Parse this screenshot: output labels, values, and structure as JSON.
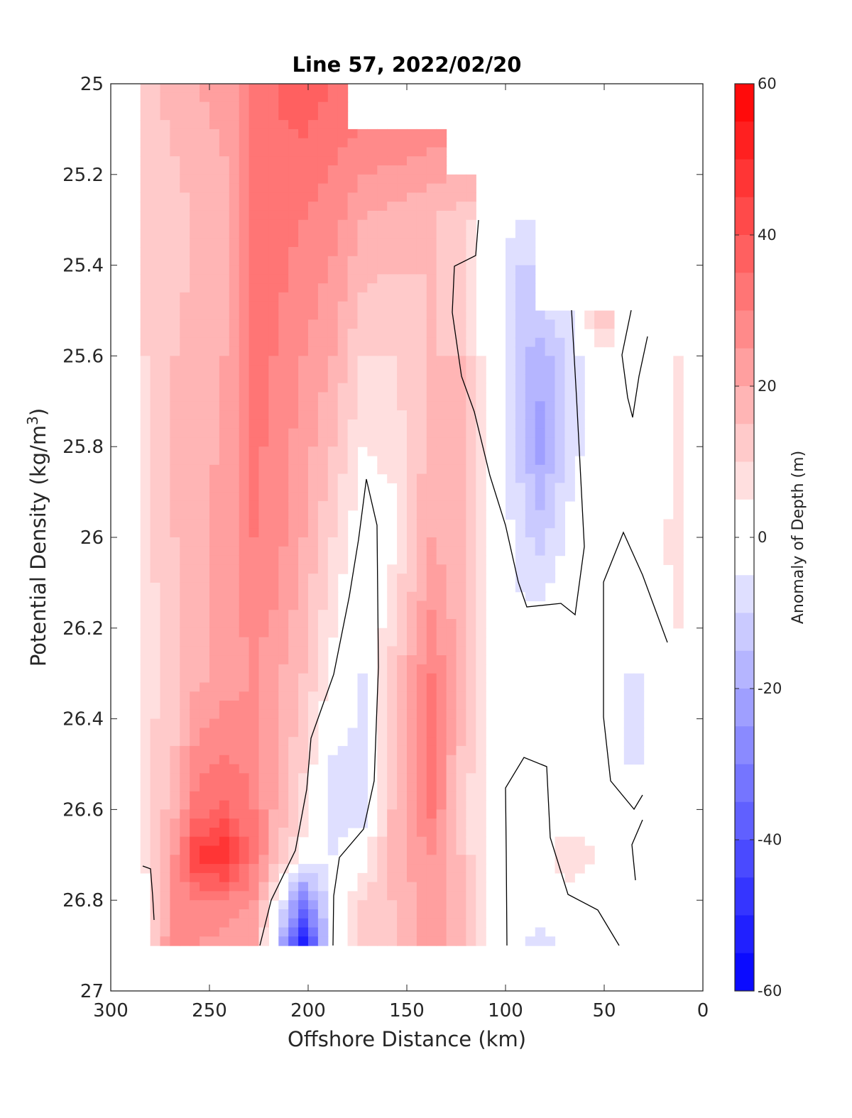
{
  "chart_data": {
    "type": "heatmap",
    "title": "Line 57, 2022/02/20",
    "xlabel": "Offshore Distance (km)",
    "ylabel": {
      "main": "Potential Density (kg/m",
      "superscript": "3",
      "close": ")"
    },
    "xlim": [
      300,
      0
    ],
    "ylim": [
      25,
      27
    ],
    "x_reversed": true,
    "y_reversed": true,
    "xticks": [
      300,
      250,
      200,
      150,
      100,
      50,
      0
    ],
    "xtick_labels": [
      "300",
      "250",
      "200",
      "150",
      "100",
      "50",
      "0"
    ],
    "yticks": [
      25,
      25.2,
      25.4,
      25.6,
      25.8,
      26,
      26.2,
      26.4,
      26.6,
      26.8,
      27
    ],
    "ytick_labels": [
      "25",
      "25.2",
      "25.4",
      "25.6",
      "25.8",
      "26",
      "26.2",
      "26.4",
      "26.6",
      "26.8",
      "27"
    ],
    "colorbar": {
      "label": "Anomaly of Depth (m)",
      "range": [
        -60,
        60
      ],
      "step": 5,
      "ticks": [
        -60,
        -40,
        -20,
        0,
        20,
        40,
        60
      ],
      "tick_labels": [
        "-60",
        "-40",
        "-20",
        "0",
        "20",
        "40",
        "60"
      ],
      "colormap": "blue-white-red",
      "low_color": "#0000ff",
      "mid_color": "#ffffff",
      "high_color": "#ff0000"
    },
    "zero_contour_color": "#000000",
    "depth_anomaly_columns": [
      {
        "x": 285,
        "sigma": [
          25,
          25.3,
          25.6,
          26.0,
          26.3,
          26.6,
          26.7,
          26.8,
          26.9
        ],
        "anomaly": [
          14,
          10,
          10,
          8,
          8,
          8,
          6,
          3,
          2
        ]
      },
      {
        "x": 270,
        "sigma": [
          25,
          25.3,
          25.6,
          26.0,
          26.3,
          26.6,
          26.7,
          26.8,
          26.9
        ],
        "anomaly": [
          17,
          13,
          15,
          15,
          12,
          18,
          25,
          25,
          30
        ]
      },
      {
        "x": 260,
        "sigma": [
          25,
          25.3,
          25.6,
          26.0,
          26.3,
          26.6,
          26.7,
          26.8,
          26.9
        ],
        "anomaly": [
          20,
          15,
          17,
          18,
          18,
          32,
          45,
          30,
          25
        ]
      },
      {
        "x": 245,
        "sigma": [
          25,
          25.3,
          25.6,
          26.0,
          26.3,
          26.6,
          26.7,
          26.8,
          26.9
        ],
        "anomaly": [
          22,
          18,
          20,
          22,
          22,
          36,
          50,
          30,
          22
        ]
      },
      {
        "x": 230,
        "sigma": [
          25,
          25.3,
          25.6,
          26.0,
          26.3,
          26.6,
          26.7,
          26.8,
          26.9
        ],
        "anomaly": [
          30,
          30,
          32,
          30,
          25,
          30,
          32,
          25,
          20
        ]
      },
      {
        "x": 220,
        "sigma": [
          25,
          25.3,
          25.6,
          26.0,
          26.3,
          26.6,
          26.7,
          26.8,
          26.9
        ],
        "anomaly": [
          35,
          33,
          30,
          28,
          22,
          20,
          18,
          5,
          -5
        ]
      },
      {
        "x": 205,
        "sigma": [
          25,
          25.3,
          25.6,
          26.0,
          26.3,
          26.6,
          26.7,
          26.8,
          26.9
        ],
        "anomaly": [
          38,
          30,
          25,
          20,
          15,
          8,
          3,
          -30,
          -55
        ]
      },
      {
        "x": 190,
        "sigma": [
          25,
          25.3,
          25.6,
          26.0,
          26.3,
          26.6,
          26.7,
          26.8,
          26.9
        ],
        "anomaly": [
          35,
          27,
          20,
          10,
          3,
          -10,
          -5,
          -3,
          0
        ]
      },
      {
        "x": 175,
        "sigma": [
          25.1,
          25.3,
          25.6,
          26.0,
          26.3,
          26.6,
          26.7,
          26.8,
          26.9
        ],
        "anomaly": [
          30,
          20,
          10,
          0,
          -5,
          -8,
          2,
          10,
          15
        ]
      },
      {
        "x": 160,
        "sigma": [
          25.1,
          25.3,
          25.6,
          26.0,
          26.3,
          26.6,
          26.7,
          26.8,
          26.9
        ],
        "anomaly": [
          30,
          18,
          10,
          3,
          12,
          15,
          18,
          15,
          12
        ]
      },
      {
        "x": 140,
        "sigma": [
          25.1,
          25.3,
          25.6,
          26.0,
          26.3,
          26.6,
          26.7,
          26.8,
          26.9
        ],
        "anomaly": [
          28,
          15,
          15,
          20,
          30,
          32,
          25,
          22,
          25
        ]
      },
      {
        "x": 125,
        "sigma": [
          25.2,
          25.3,
          25.6,
          26.0,
          26.3,
          26.6,
          26.7,
          26.8,
          26.9
        ],
        "anomaly": [
          20,
          12,
          15,
          15,
          18,
          12,
          15,
          18,
          15
        ]
      },
      {
        "x": 110,
        "sigma": [
          25.3,
          25.4,
          25.6,
          26.0,
          26.3,
          26.6,
          26.7,
          26.8,
          26.9
        ],
        "anomaly": [
          -2,
          0,
          0,
          3,
          5,
          2,
          0,
          0,
          0
        ]
      },
      {
        "x": 95,
        "sigma": [
          25.3,
          25.4,
          25.6,
          26.0,
          26.3,
          26.6,
          26.7,
          26.8,
          26.9
        ],
        "anomaly": [
          -5,
          -10,
          -15,
          -8,
          0,
          0,
          0,
          0,
          -5
        ]
      },
      {
        "x": 85,
        "sigma": [
          25.5,
          25.6,
          25.8,
          26.0,
          26.3,
          26.6,
          26.7,
          26.8,
          26.9
        ],
        "anomaly": [
          -10,
          -18,
          -22,
          -12,
          3,
          3,
          3,
          0,
          -8
        ]
      },
      {
        "x": 70,
        "sigma": [
          25.5,
          25.6,
          25.8,
          26.0,
          26.3,
          26.6,
          26.7,
          26.8,
          26.9
        ],
        "anomaly": [
          -5,
          -10,
          -8,
          -3,
          3,
          2,
          8,
          3,
          -3
        ]
      },
      {
        "x": 55,
        "sigma": [
          25.5,
          25.6,
          25.8,
          26.0,
          26.3,
          26.6,
          26.7,
          26.8,
          26.9
        ],
        "anomaly": [
          15,
          3,
          0,
          0,
          0,
          0,
          5,
          0,
          0
        ]
      },
      {
        "x": 40,
        "sigma": [
          25.6,
          25.8,
          26.0,
          26.3,
          26.5,
          26.6,
          26.7,
          26.8
        ],
        "anomaly": [
          2,
          -1,
          0,
          -5,
          -5,
          -2,
          3,
          3
        ]
      },
      {
        "x": 25,
        "sigma": [
          25.7,
          25.8,
          26.0,
          26.2,
          26.3
        ],
        "anomaly": [
          3,
          2,
          3,
          2,
          -5
        ]
      },
      {
        "x": 10,
        "sigma": [
          25.6,
          25.8,
          26.0,
          26.2
        ],
        "anomaly": [
          8,
          8,
          10,
          8
        ]
      }
    ]
  }
}
